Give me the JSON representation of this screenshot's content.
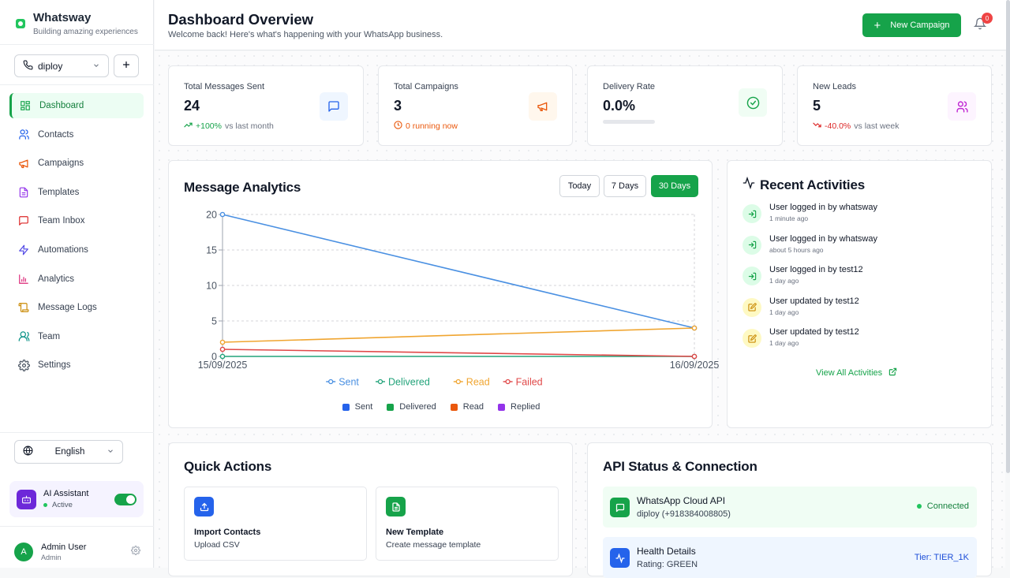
{
  "brand": {
    "name": "Whatsway",
    "tagline": "Building amazing experiences"
  },
  "account_select": {
    "value": "diploy"
  },
  "sidebar": {
    "items": [
      {
        "label": "Dashboard",
        "icon": "dashboard-icon",
        "active": true
      },
      {
        "label": "Contacts",
        "icon": "users-icon"
      },
      {
        "label": "Campaigns",
        "icon": "megaphone-icon"
      },
      {
        "label": "Templates",
        "icon": "document-icon"
      },
      {
        "label": "Team Inbox",
        "icon": "message-icon"
      },
      {
        "label": "Automations",
        "icon": "bolt-icon"
      },
      {
        "label": "Analytics",
        "icon": "bar-chart-icon"
      },
      {
        "label": "Message Logs",
        "icon": "scroll-icon"
      },
      {
        "label": "Team",
        "icon": "team-icon"
      },
      {
        "label": "Settings",
        "icon": "gear-icon"
      }
    ]
  },
  "language": {
    "value": "English"
  },
  "ai_assistant": {
    "title": "AI Assistant",
    "status": "Active"
  },
  "user": {
    "initial": "A",
    "name": "Admin User",
    "role": "Admin"
  },
  "header": {
    "title": "Dashboard Overview",
    "subtitle": "Welcome back! Here's what's happening with your WhatsApp business.",
    "new_campaign": "New Campaign",
    "notification_count": "0"
  },
  "stats": {
    "messages": {
      "label": "Total Messages Sent",
      "value": "24",
      "change": "+100%",
      "change_text": "vs last month"
    },
    "campaigns": {
      "label": "Total Campaigns",
      "value": "3",
      "sub": "0 running now"
    },
    "delivery": {
      "label": "Delivery Rate",
      "value": "0.0%",
      "progress": 0
    },
    "leads": {
      "label": "New Leads",
      "value": "5",
      "change": "-40.0%",
      "change_text": "vs last week"
    }
  },
  "analytics": {
    "title": "Message Analytics",
    "ranges": [
      "Today",
      "7 Days",
      "30 Days"
    ],
    "active_range": "30 Days",
    "secondary_legend": [
      {
        "name": "Sent",
        "color": "#2563eb"
      },
      {
        "name": "Delivered",
        "color": "#16a34a"
      },
      {
        "name": "Read",
        "color": "#ea580c"
      },
      {
        "name": "Replied",
        "color": "#9333ea"
      }
    ]
  },
  "chart_data": {
    "type": "line",
    "x": [
      "15/09/2025",
      "16/09/2025"
    ],
    "ylim": [
      0,
      20
    ],
    "yticks": [
      0,
      5,
      10,
      15,
      20
    ],
    "grid": true,
    "legend_position": "bottom",
    "series": [
      {
        "name": "Sent",
        "values": [
          20,
          4
        ],
        "color": "#4a90e2"
      },
      {
        "name": "Delivered",
        "values": [
          0,
          0
        ],
        "color": "#22a37a"
      },
      {
        "name": "Read",
        "values": [
          2,
          4
        ],
        "color": "#f0a530"
      },
      {
        "name": "Failed",
        "values": [
          1,
          0
        ],
        "color": "#e04848"
      }
    ]
  },
  "activities": {
    "title": "Recent Activities",
    "items": [
      {
        "title": "User logged in by whatsway",
        "time": "1 minute ago",
        "kind": "login"
      },
      {
        "title": "User logged in by whatsway",
        "time": "about 5 hours ago",
        "kind": "login"
      },
      {
        "title": "User logged in by test12",
        "time": "1 day ago",
        "kind": "login"
      },
      {
        "title": "User updated by test12",
        "time": "1 day ago",
        "kind": "update"
      },
      {
        "title": "User updated by test12",
        "time": "1 day ago",
        "kind": "update"
      }
    ],
    "view_all": "View All Activities"
  },
  "quick_actions": {
    "title": "Quick Actions",
    "items": [
      {
        "title": "Import Contacts",
        "sub": "Upload CSV"
      },
      {
        "title": "New Template",
        "sub": "Create message template"
      }
    ]
  },
  "api_status": {
    "title": "API Status & Connection",
    "cloud": {
      "name": "WhatsApp Cloud API",
      "sub": "diploy (+918384008805)",
      "status": "Connected"
    },
    "health": {
      "name": "Health Details",
      "sub": "Rating: GREEN",
      "tier": "Tier: TIER_1K"
    }
  }
}
